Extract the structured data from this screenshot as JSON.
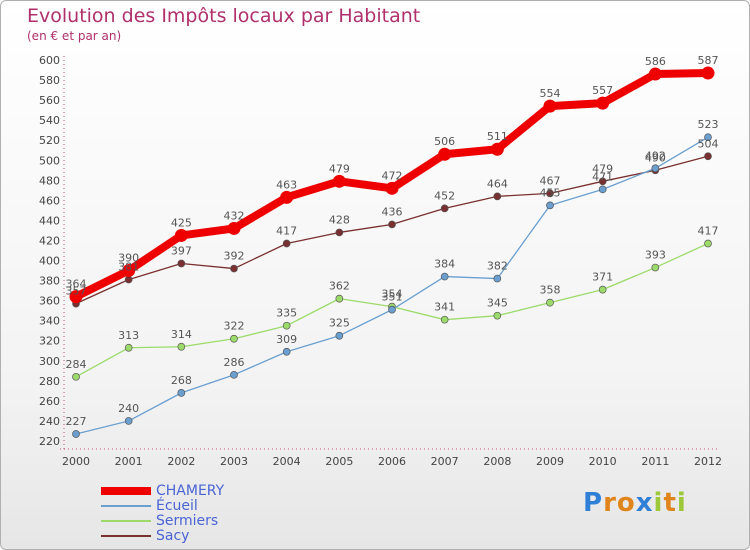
{
  "header": {
    "title": "Evolution des Impôts locaux par Habitant",
    "subtitle": "(en € et par an)"
  },
  "logo": {
    "text": "Proxiti",
    "letter_colors": [
      "#2f7fd6",
      "#e0851c",
      "#e0851c",
      "#2f7fd6",
      "#9cc83a",
      "#e0851c",
      "#9cc83a"
    ]
  },
  "chart_data": {
    "type": "line",
    "title": "Evolution des Impôts locaux par Habitant",
    "subtitle": "(en € et par an)",
    "xlabel": "",
    "ylabel": "",
    "x": [
      "2000",
      "2001",
      "2002",
      "2003",
      "2004",
      "2005",
      "2006",
      "2007",
      "2008",
      "2009",
      "2010",
      "2011",
      "2012"
    ],
    "ylim": [
      220,
      600
    ],
    "yticks": [
      220,
      240,
      260,
      280,
      300,
      320,
      340,
      360,
      380,
      400,
      420,
      440,
      460,
      480,
      500,
      520,
      540,
      560,
      580,
      600
    ],
    "grid": false,
    "legend_position": "bottom-left",
    "series": [
      {
        "name": "CHAMERY",
        "color": "#ee0000",
        "values": [
          364,
          390,
          425,
          432,
          463,
          479,
          472,
          506,
          511,
          554,
          557,
          586,
          587
        ]
      },
      {
        "name": "Écueil",
        "color": "#6a9fd0",
        "values": [
          227,
          240,
          268,
          286,
          309,
          325,
          351,
          384,
          382,
          455,
          471,
          492,
          523
        ]
      },
      {
        "name": "Sermiers",
        "color": "#9cdb6a",
        "values": [
          284,
          313,
          314,
          322,
          335,
          362,
          354,
          341,
          345,
          358,
          371,
          393,
          417
        ]
      },
      {
        "name": "Sacy",
        "color": "#7a3030",
        "values": [
          357,
          381,
          397,
          392,
          417,
          428,
          436,
          452,
          464,
          467,
          479,
          490,
          504
        ]
      }
    ]
  }
}
